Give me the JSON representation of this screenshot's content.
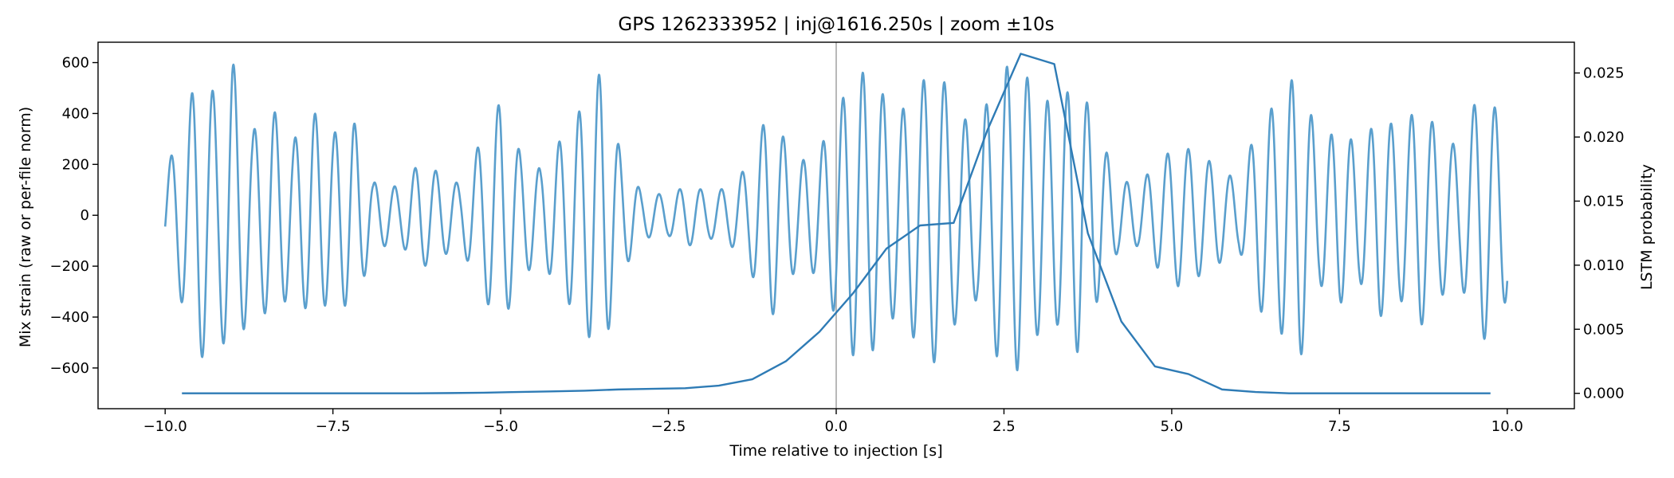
{
  "chart_data": {
    "type": "line",
    "title": "GPS 1262333952 | inj@1616.250s | zoom ±10s",
    "xlabel": "Time relative to injection [s]",
    "ylabel_left": "Mix strain (raw or per-file norm)",
    "ylabel_right": "LSTM probability",
    "xlim": [
      -11.0,
      11.0
    ],
    "ylim_left": [
      -760,
      680
    ],
    "ylim_right": [
      -0.0012,
      0.0274
    ],
    "x_ticks": [
      -10.0,
      -7.5,
      -5.0,
      -2.5,
      0.0,
      2.5,
      5.0,
      7.5,
      10.0
    ],
    "x_tick_labels": [
      "−10.0",
      "−7.5",
      "−5.0",
      "−2.5",
      "0.0",
      "2.5",
      "5.0",
      "7.5",
      "10.0"
    ],
    "y_left_ticks": [
      -600,
      -400,
      -200,
      0,
      200,
      400,
      600
    ],
    "y_left_tick_labels": [
      "−600",
      "−400",
      "−200",
      "0",
      "200",
      "400",
      "600"
    ],
    "y_right_ticks": [
      0.0,
      0.005,
      0.01,
      0.015,
      0.02,
      0.025
    ],
    "y_right_tick_labels": [
      "0.000",
      "0.005",
      "0.010",
      "0.015",
      "0.020",
      "0.025"
    ],
    "injection_marker_x": 0.0,
    "grid": false,
    "colors": {
      "strain": "#5a9fcd",
      "probability": "#2e7bb5",
      "marker": "#b8b8b8"
    },
    "series": [
      {
        "axis": "left",
        "x_start": -10.0,
        "x_end": 10.0,
        "envelope_t": [
          -10.0,
          -9.7,
          -9.5,
          -9.2,
          -9.0,
          -8.7,
          -8.4,
          -8.1,
          -7.8,
          -7.5,
          -7.2,
          -6.9,
          -6.5,
          -6.2,
          -6.0,
          -5.6,
          -5.3,
          -5.0,
          -4.7,
          -4.4,
          -4.1,
          -3.8,
          -3.5,
          -3.2,
          -2.9,
          -2.5,
          -2.2,
          -1.9,
          -1.6,
          -1.3,
          -1.0,
          -0.6,
          -0.3,
          0.0,
          0.3,
          0.6,
          0.9,
          1.2,
          1.5,
          1.8,
          2.1,
          2.4,
          2.7,
          3.0,
          3.3,
          3.6,
          3.9,
          4.2,
          4.5,
          4.8,
          5.1,
          5.4,
          5.7,
          6.0,
          6.3,
          6.6,
          6.9,
          7.2,
          7.5,
          7.8,
          8.1,
          8.4,
          8.7,
          9.0,
          9.3,
          9.6,
          9.9,
          10.0
        ],
        "envelope_amp": [
          170,
          380,
          580,
          450,
          610,
          330,
          420,
          290,
          410,
          320,
          380,
          130,
          110,
          210,
          180,
          120,
          290,
          450,
          240,
          180,
          300,
          420,
          570,
          230,
          90,
          80,
          120,
          90,
          110,
          200,
          420,
          210,
          230,
          400,
          580,
          520,
          380,
          500,
          590,
          410,
          330,
          560,
          610,
          470,
          430,
          540,
          330,
          140,
          120,
          210,
          280,
          240,
          190,
          130,
          370,
          450,
          580,
          270,
          350,
          260,
          400,
          330,
          440,
          320,
          260,
          510,
          390,
          320
        ],
        "cycles_per_second": 3.3
      },
      {
        "name": "",
        "axis": "right",
        "x": [
          -9.75,
          -9.25,
          -8.75,
          -8.25,
          -7.75,
          -7.25,
          -6.75,
          -6.25,
          -5.75,
          -5.25,
          -4.75,
          -4.25,
          -3.75,
          -3.25,
          -2.75,
          -2.25,
          -1.75,
          -1.25,
          -0.75,
          -0.25,
          0.25,
          0.75,
          1.25,
          1.75,
          2.25,
          2.75,
          3.25,
          3.75,
          4.25,
          4.75,
          5.25,
          5.75,
          6.25,
          6.75,
          7.25,
          7.75,
          8.25,
          8.75,
          9.25,
          9.75
        ],
        "values": [
          0.0,
          0.0,
          0.0,
          0.0,
          0.0,
          0.0,
          0.0,
          0.0,
          2e-05,
          5e-05,
          0.0001,
          0.00015,
          0.0002,
          0.0003,
          0.00035,
          0.0004,
          0.0006,
          0.0011,
          0.0025,
          0.0048,
          0.0078,
          0.0113,
          0.0131,
          0.0133,
          0.0205,
          0.0265,
          0.0257,
          0.0125,
          0.0056,
          0.0021,
          0.0015,
          0.0003,
          0.0001,
          0.0,
          0.0,
          0.0,
          0.0,
          0.0,
          0.0,
          0.0
        ]
      }
    ]
  }
}
